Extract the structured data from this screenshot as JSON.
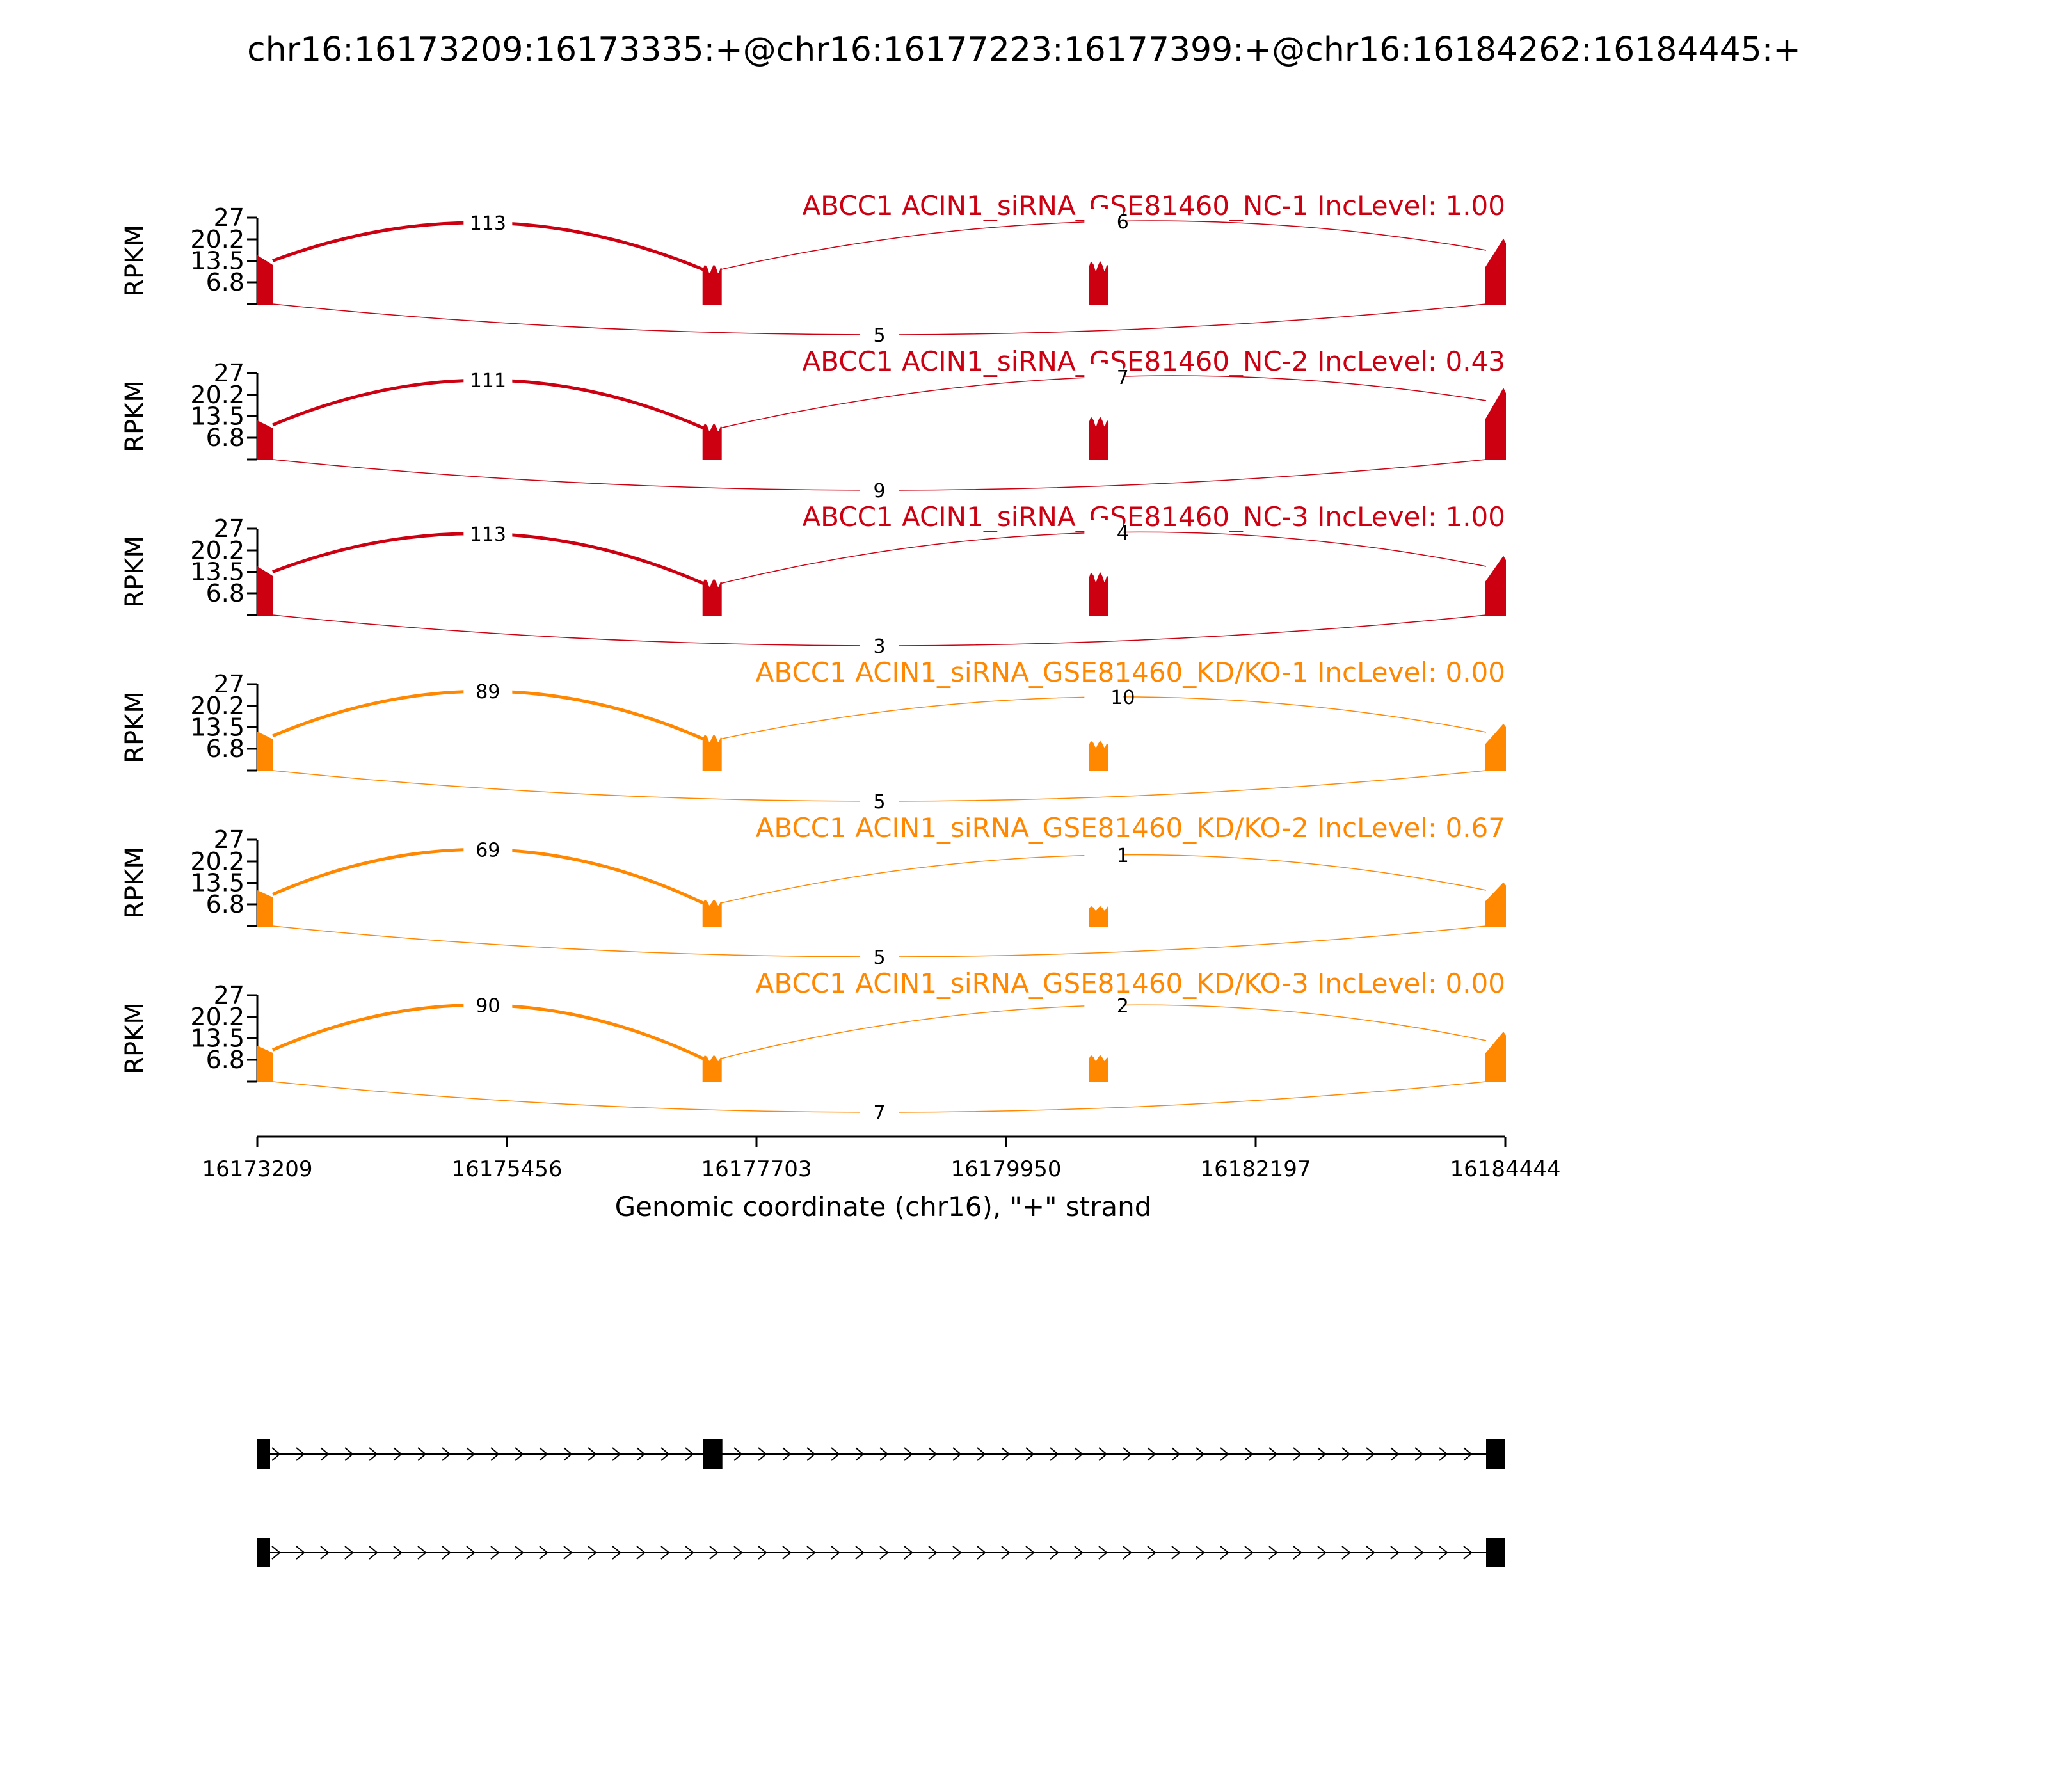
{
  "chart_data": {
    "type": "sashimi",
    "title": "chr16:16173209:16173335:+@chr16:16177223:16177399:+@chr16:16184262:16184445:+",
    "xlabel": "Genomic coordinate (chr16), \"+\" strand",
    "ylabel": "RPKM",
    "xlim": [
      16173209,
      16184444
    ],
    "xticks": [
      "16173209",
      "16175456",
      "16177703",
      "16179950",
      "16182197",
      "16184444"
    ],
    "ylim": [
      0,
      27
    ],
    "yticks": [
      "6.8",
      "13.5",
      "20.2",
      "27"
    ],
    "exons": [
      [
        16173209,
        16173335
      ],
      [
        16177223,
        16177399
      ],
      [
        16180700,
        16180860
      ],
      [
        16184262,
        16184444
      ]
    ],
    "series": [
      {
        "name": "ABCC1 ACIN1_siRNA_GSE81460_NC-1 IncLevel: 1.00",
        "color": "#cc0011",
        "coverage": [
          15,
          12,
          13,
          21
        ],
        "junctions": {
          "upper_left": "113",
          "upper_right": "6",
          "lower": "5"
        }
      },
      {
        "name": "ABCC1 ACIN1_siRNA_GSE81460_NC-2 IncLevel: 0.43",
        "color": "#cc0011",
        "coverage": [
          12,
          11,
          13,
          23
        ],
        "junctions": {
          "upper_left": "111",
          "upper_right": "7",
          "lower": "9"
        }
      },
      {
        "name": "ABCC1 ACIN1_siRNA_GSE81460_NC-3 IncLevel: 1.00",
        "color": "#cc0011",
        "coverage": [
          15,
          11,
          13,
          19
        ],
        "junctions": {
          "upper_left": "113",
          "upper_right": "4",
          "lower": "3"
        }
      },
      {
        "name": "ABCC1 ACIN1_siRNA_GSE81460_KD/KO-1 IncLevel: 0.00",
        "color": "#ff8800",
        "coverage": [
          12,
          11,
          9,
          15
        ],
        "junctions": {
          "upper_left": "89",
          "upper_right": "10",
          "lower": "5"
        }
      },
      {
        "name": "ABCC1 ACIN1_siRNA_GSE81460_KD/KO-2 IncLevel: 0.67",
        "color": "#ff8800",
        "coverage": [
          11,
          8,
          6,
          14
        ],
        "junctions": {
          "upper_left": "69",
          "upper_right": "1",
          "lower": "5"
        }
      },
      {
        "name": "ABCC1 ACIN1_siRNA_GSE81460_KD/KO-3 IncLevel: 0.00",
        "color": "#ff8800",
        "coverage": [
          11,
          8,
          8,
          16
        ],
        "junctions": {
          "upper_left": "90",
          "upper_right": "2",
          "lower": "7"
        }
      }
    ],
    "isoforms": [
      [
        [
          16173209,
          16173335
        ],
        [
          16177223,
          16177399
        ],
        [
          16184262,
          16184444
        ]
      ],
      [
        [
          16173209,
          16173335
        ],
        [
          16184262,
          16184444
        ]
      ]
    ]
  }
}
